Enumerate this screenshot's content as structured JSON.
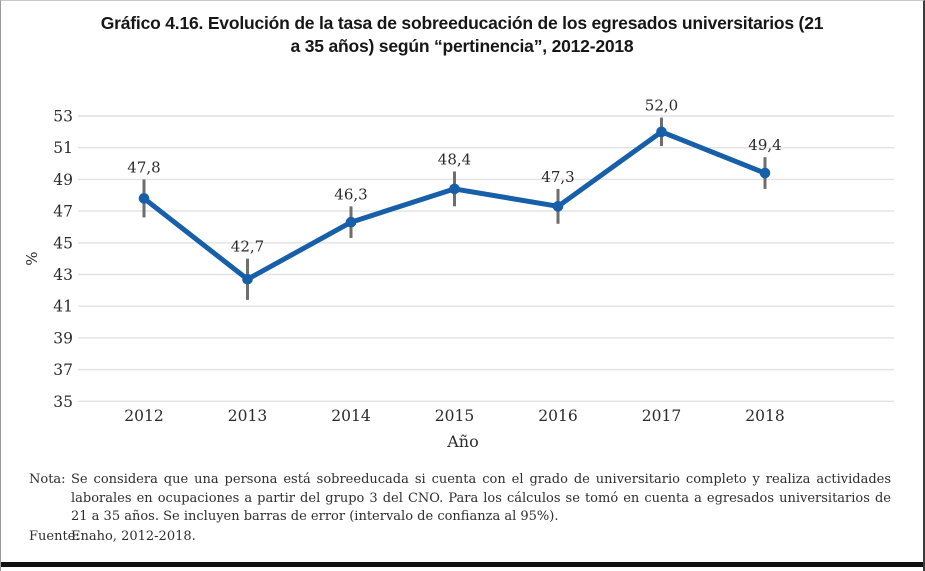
{
  "title": {
    "line1": "Gráfico 4.16. Evolución de la tasa de sobreeducación de los egresados universitarios (21",
    "line2": "a 35 años) según “pertinencia”, 2012-2018"
  },
  "chart_data": {
    "type": "line",
    "title": "Gráfico 4.16. Evolución de la tasa de sobreeducación de los egresados universitarios (21 a 35 años) según “pertinencia”, 2012-2018",
    "categories": [
      "2012",
      "2013",
      "2014",
      "2015",
      "2016",
      "2017",
      "2018"
    ],
    "series": [
      {
        "name": "Tasa de sobreeducación (%)",
        "values": [
          47.8,
          42.7,
          46.3,
          48.4,
          47.3,
          52.0,
          49.4
        ],
        "value_labels": [
          "47,8",
          "42,7",
          "46,3",
          "48,4",
          "47,3",
          "52,0",
          "49,4"
        ],
        "error_bars": [
          1.2,
          1.3,
          1.0,
          1.1,
          1.1,
          0.9,
          1.0
        ]
      }
    ],
    "xlabel": "Año",
    "ylabel": "%",
    "ylim": [
      35,
      53
    ],
    "y_ticks": [
      35,
      37,
      39,
      41,
      43,
      45,
      47,
      49,
      51,
      53
    ],
    "grid": "horizontal",
    "legend": "none",
    "colors": {
      "line": "#175fa9",
      "marker": "#175fa9",
      "error_bar": "#6e6e6e",
      "gridline": "#e2e2e2",
      "tick_text": "#2b2b2b",
      "label_text": "#2b2b2b"
    }
  },
  "notes": {
    "nota_label": "Nota:",
    "nota_text": "Se considera que una persona está sobreeducada si cuenta con el grado de universitario completo y realiza actividades laborales en ocupaciones a partir del grupo 3 del CNO. Para los cálculos se tomó en cuenta a egresados universitarios de 21 a 35 años. Se incluyen barras de error (intervalo de confianza al 95%).",
    "fuente_label": "Fuente:",
    "fuente_text": "Enaho, 2012-2018."
  }
}
